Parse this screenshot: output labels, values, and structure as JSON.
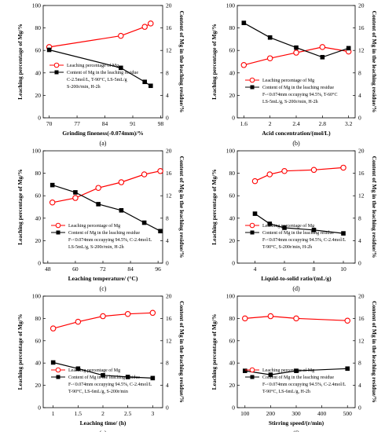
{
  "chart_data": [
    {
      "type": "line",
      "panel_label": "(a)",
      "xlabel": "Grinding fineness(-0.074mm)/%",
      "ylabel_left": "Leaching percentage of Mg/%",
      "ylabel_right": "Content of Mg in the leaching residue/%",
      "xlim": [
        68.5,
        98.5
      ],
      "xticks": [
        70,
        77,
        84,
        91,
        98
      ],
      "ylim_left": [
        0,
        100
      ],
      "yticks_left": [
        0,
        20,
        40,
        60,
        80,
        100
      ],
      "ylim_right": [
        0,
        20
      ],
      "yticks_right": [
        0,
        4,
        8,
        12,
        16,
        20
      ],
      "legend_position": "center-right",
      "legend": [
        "Leaching percentage of Mg",
        "Content of Mg in the leaching residue"
      ],
      "conditions": [
        "C-2.5mol/L, T-90°C, LS-5mL/g",
        "S-200r/min, H-2h"
      ],
      "series": [
        {
          "name": "Leaching percentage of Mg",
          "axis": "left",
          "marker": "circle",
          "color": "#ff0000",
          "x": [
            70,
            88,
            94,
            95.5
          ],
          "y": [
            63,
            73,
            81,
            84
          ]
        },
        {
          "name": "Content of Mg in the leaching residue",
          "axis": "right",
          "marker": "square",
          "color": "#000000",
          "x": [
            70,
            88,
            94,
            95.5
          ],
          "y": [
            12.1,
            8.9,
            6.4,
            5.7
          ]
        }
      ]
    },
    {
      "type": "line",
      "panel_label": "(b)",
      "xlabel": "Acid concentration/(mol/L)",
      "ylabel_left": "Leaching percentage of Mg/%",
      "ylabel_right": "Content of Mg in the leaching residue/%",
      "xlim": [
        1.5,
        3.3
      ],
      "xticks": [
        1.6,
        2.0,
        2.4,
        2.8,
        3.2
      ],
      "ylim_left": [
        0,
        100
      ],
      "yticks_left": [
        0,
        20,
        40,
        60,
        80,
        100
      ],
      "ylim_right": [
        0,
        20
      ],
      "yticks_right": [
        0,
        4,
        8,
        12,
        16,
        20
      ],
      "legend_position": "bottom-right",
      "legend": [
        "Leaching percentage of Mg",
        "Content of Mg in the leaching residue"
      ],
      "conditions": [
        "F-<0.074mm occupying 94.5%, T-60°C",
        "LS-5mL/g, S-200r/min, H-2h"
      ],
      "series": [
        {
          "name": "Leaching percentage of Mg",
          "axis": "left",
          "marker": "circle",
          "color": "#ff0000",
          "x": [
            1.6,
            2.0,
            2.4,
            2.8,
            3.2
          ],
          "y": [
            47,
            53,
            58,
            63,
            59
          ]
        },
        {
          "name": "Content of Mg in the leaching residue",
          "axis": "right",
          "marker": "square",
          "color": "#000000",
          "x": [
            1.6,
            2.0,
            2.4,
            2.8,
            3.2
          ],
          "y": [
            16.9,
            14.3,
            12.5,
            10.8,
            12.4
          ]
        }
      ]
    },
    {
      "type": "line",
      "panel_label": "(c)",
      "xlabel": "Leaching temperature/ (°C)",
      "ylabel_left": "Leaching percentage of Mg/%",
      "ylabel_right": "Content of Mg in the leaching residue/%",
      "xlim": [
        46,
        98
      ],
      "xticks": [
        48,
        60,
        72,
        84,
        96
      ],
      "ylim_left": [
        0,
        100
      ],
      "yticks_left": [
        0,
        20,
        40,
        60,
        80,
        100
      ],
      "ylim_right": [
        0,
        20
      ],
      "yticks_right": [
        0,
        4,
        8,
        12,
        16,
        20
      ],
      "legend_position": "bottom-right",
      "legend": [
        "Leaching percentage of Mg",
        "Content of Mg in the leaching residue"
      ],
      "conditions": [
        "F-<0.074mm occupying 94.5%, C-2.4mol/L",
        "LS-5mL/g, S-200r/min, H-2h"
      ],
      "series": [
        {
          "name": "Leaching percentage of Mg",
          "axis": "left",
          "marker": "circle",
          "color": "#ff0000",
          "x": [
            50,
            60,
            70,
            80,
            90,
            97
          ],
          "y": [
            54,
            58,
            67,
            72,
            79,
            82
          ]
        },
        {
          "name": "Content of Mg in the leaching residue",
          "axis": "right",
          "marker": "square",
          "color": "#000000",
          "x": [
            50,
            60,
            70,
            80,
            90,
            97
          ],
          "y": [
            13.9,
            12.6,
            10.5,
            9.4,
            7.2,
            5.7
          ]
        }
      ]
    },
    {
      "type": "line",
      "panel_label": "(d)",
      "xlabel": "Liquid-to-solid ratio/(mL/g)",
      "ylabel_left": "Leaching percentage of Mg/%",
      "ylabel_right": "Content of Mg in the leaching residue/%",
      "xlim": [
        2.8,
        10.8
      ],
      "xticks": [
        4,
        6,
        8,
        10
      ],
      "ylim_left": [
        0,
        100
      ],
      "yticks_left": [
        0,
        20,
        40,
        60,
        80,
        100
      ],
      "ylim_right": [
        0,
        20
      ],
      "yticks_right": [
        0,
        4,
        8,
        12,
        16,
        20
      ],
      "legend_position": "bottom-right",
      "legend": [
        "Leaching percentage of Mg",
        "Content of Mg in the leaching residue"
      ],
      "conditions": [
        "F-<0.074mm occupying 94.5%, C-2.4mol/L",
        "T-90°C, S-200r/min, H-2h"
      ],
      "series": [
        {
          "name": "Leaching percentage of Mg",
          "axis": "left",
          "marker": "circle",
          "color": "#ff0000",
          "x": [
            4,
            5,
            6,
            8,
            10
          ],
          "y": [
            73,
            79,
            82,
            83,
            85
          ]
        },
        {
          "name": "Content of Mg in the leaching residue",
          "axis": "right",
          "marker": "square",
          "color": "#000000",
          "x": [
            4,
            5,
            6,
            8,
            10
          ],
          "y": [
            8.8,
            7.0,
            6.3,
            5.9,
            5.3
          ]
        }
      ]
    },
    {
      "type": "line",
      "panel_label": "(e)",
      "xlabel": "Leaching time/ (h)",
      "ylabel_left": "Leaching percentage of Mg/%",
      "ylabel_right": "Content of Mg in the leaching residue/%",
      "xlim": [
        0.8,
        3.2
      ],
      "xticks": [
        1.0,
        1.5,
        2.0,
        2.5,
        3.0
      ],
      "ylim_left": [
        0,
        100
      ],
      "yticks_left": [
        0,
        20,
        40,
        60,
        80,
        100
      ],
      "ylim_right": [
        0,
        20
      ],
      "yticks_right": [
        0,
        4,
        8,
        12,
        16,
        20
      ],
      "legend_position": "bottom-right",
      "legend": [
        "Leaching percentage of Mg",
        "Content of Mg in the leaching residue"
      ],
      "conditions": [
        "F-<0.074mm occupying 94.5%, C-2.4mol/L",
        "T-90°C, LS-6mL/g, S-200r/min"
      ],
      "series": [
        {
          "name": "Leaching percentage of Mg",
          "axis": "left",
          "marker": "circle",
          "color": "#ff0000",
          "x": [
            1.0,
            1.5,
            2.0,
            2.5,
            3.0
          ],
          "y": [
            71,
            77,
            82,
            84,
            85
          ]
        },
        {
          "name": "Content of Mg in the leaching residue",
          "axis": "right",
          "marker": "square",
          "color": "#000000",
          "x": [
            1.0,
            1.5,
            2.0,
            2.5,
            3.0
          ],
          "y": [
            8.1,
            7.0,
            5.8,
            5.5,
            5.3
          ]
        }
      ]
    },
    {
      "type": "line",
      "panel_label": "(f)",
      "xlabel": "Stirring speed/(r/min)",
      "ylabel_left": "Leaching percentage of Mg/%",
      "ylabel_right": "Content of Mg in the leaching residue/%",
      "xlim": [
        70,
        530
      ],
      "xticks": [
        100,
        200,
        300,
        400,
        500
      ],
      "ylim_left": [
        0,
        100
      ],
      "yticks_left": [
        0,
        20,
        40,
        60,
        80,
        100
      ],
      "ylim_right": [
        0,
        20
      ],
      "yticks_right": [
        0,
        4,
        8,
        12,
        16,
        20
      ],
      "legend_position": "bottom-right",
      "legend": [
        "Leaching percentage of Mg",
        "Content of Mg in the leaching residue"
      ],
      "conditions": [
        "F-<0.074mm occupying 94.5%, C-2.4mol/L",
        "T-90°C, LS-6mL/g, H-2h"
      ],
      "series": [
        {
          "name": "Leaching percentage of Mg",
          "axis": "left",
          "marker": "circle",
          "color": "#ff0000",
          "x": [
            100,
            200,
            300,
            500
          ],
          "y": [
            80,
            82,
            80,
            78
          ]
        },
        {
          "name": "Content of Mg in the leaching residue",
          "axis": "right",
          "marker": "square",
          "color": "#000000",
          "x": [
            100,
            200,
            300,
            500
          ],
          "y": [
            6.6,
            5.9,
            6.6,
            7.0
          ]
        }
      ]
    }
  ]
}
